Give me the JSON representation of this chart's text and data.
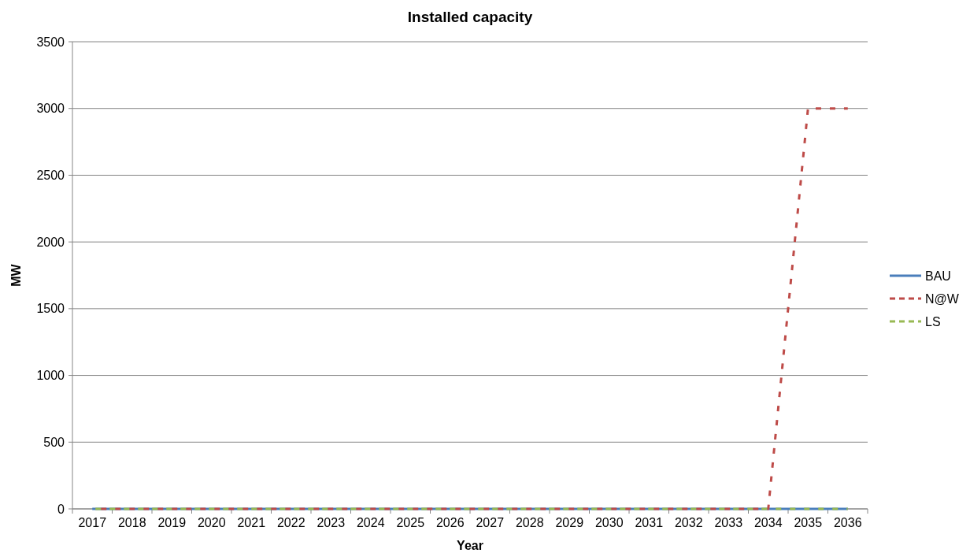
{
  "chart_data": {
    "type": "line",
    "title": "Installed capacity",
    "xlabel": "Year",
    "ylabel": "MW",
    "categories": [
      "2017",
      "2018",
      "2019",
      "2020",
      "2021",
      "2022",
      "2023",
      "2024",
      "2025",
      "2026",
      "2027",
      "2028",
      "2029",
      "2030",
      "2031",
      "2032",
      "2033",
      "2034",
      "2035",
      "2036"
    ],
    "series": [
      {
        "name": "BAU",
        "color": "#4a7ebb",
        "line_style": "solid",
        "values": [
          0,
          0,
          0,
          0,
          0,
          0,
          0,
          0,
          0,
          0,
          0,
          0,
          0,
          0,
          0,
          0,
          0,
          0,
          0,
          0
        ]
      },
      {
        "name": "N@W",
        "color": "#be4b48",
        "line_style": "dashed",
        "values": [
          0,
          0,
          0,
          0,
          0,
          0,
          0,
          0,
          0,
          0,
          0,
          0,
          0,
          0,
          0,
          0,
          0,
          0,
          3000,
          3000
        ]
      },
      {
        "name": "LS",
        "color": "#98b954",
        "line_style": "dashed",
        "values": [
          0,
          0,
          0,
          0,
          0,
          0,
          0,
          0,
          0,
          0,
          0,
          0,
          0,
          0,
          0,
          0,
          0,
          0,
          0,
          0
        ]
      }
    ],
    "ylim": [
      0,
      3500
    ],
    "yticks": [
      0,
      500,
      1000,
      1500,
      2000,
      2500,
      3000,
      3500
    ],
    "grid": "y",
    "legend": "right",
    "marker": "none"
  }
}
